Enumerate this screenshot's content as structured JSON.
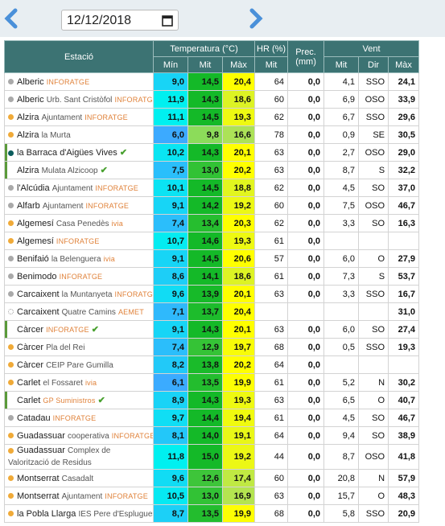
{
  "date": "12/12/2018",
  "header": {
    "station": "Estació",
    "temperature": "Temperatura (°C)",
    "humidity": "HR (%)",
    "precipitation": "Prec. (mm)",
    "wind": "Vent",
    "sub": [
      "Mín",
      "Mit",
      "Màx",
      "Mit",
      "Mit",
      "Dir",
      "Màx"
    ]
  },
  "rows": [
    {
      "name": "Alberic",
      "source": "INFORATGE",
      "dot": "grey",
      "cells": [
        "9,0",
        "14,5",
        "20,4",
        "64",
        "0,0",
        "4,1",
        "SSO",
        "24,1"
      ]
    },
    {
      "name": "Alberic",
      "detail": "Urb. Sant Cristòfol",
      "source": "INFORATGE",
      "dot": "grey",
      "cells": [
        "11,9",
        "14,3",
        "18,6",
        "60",
        "0,0",
        "6,9",
        "OSO",
        "33,9"
      ]
    },
    {
      "name": "Alzira",
      "detail": "Ajuntament",
      "source": "INFORATGE",
      "dot": "orange",
      "cells": [
        "11,1",
        "14,5",
        "19,3",
        "62",
        "0,0",
        "6,7",
        "SSO",
        "29,6"
      ]
    },
    {
      "name": "Alzira",
      "detail": "la Murta",
      "dot": "orange",
      "cells": [
        "6,0",
        "9,8",
        "16,6",
        "78",
        "0,0",
        "0,9",
        "SE",
        "30,5"
      ]
    },
    {
      "name": "la Barraca d'Aigües Vives",
      "dot": "teal",
      "check": true,
      "cells": [
        "10,2",
        "14,3",
        "20,1",
        "63",
        "0,0",
        "2,7",
        "OSO",
        "29,0"
      ]
    },
    {
      "name": "Alzira",
      "detail": "Mulata Alzicoop",
      "check": true,
      "cells": [
        "7,5",
        "13,0",
        "20,2",
        "63",
        "0,0",
        "8,7",
        "S",
        "32,2"
      ]
    },
    {
      "name": "l'Alcúdia",
      "detail": "Ajuntament",
      "source": "INFORATGE",
      "dot": "grey",
      "cells": [
        "10,1",
        "14,5",
        "18,8",
        "62",
        "0,0",
        "4,5",
        "SO",
        "37,0"
      ]
    },
    {
      "name": "Alfarb",
      "detail": "Ajuntament",
      "source": "INFORATGE",
      "dot": "grey",
      "cells": [
        "9,1",
        "14,2",
        "19,2",
        "60",
        "0,0",
        "7,5",
        "OSO",
        "46,7"
      ]
    },
    {
      "name": "Algemesí",
      "detail": "Casa Penedès",
      "source": "ivia",
      "dot": "orange",
      "cells": [
        "7,4",
        "13,4",
        "20,3",
        "62",
        "0,0",
        "3,3",
        "SO",
        "16,3"
      ]
    },
    {
      "name": "Algemesí",
      "source": "INFORATGE",
      "dot": "orange",
      "cells": [
        "10,7",
        "14,6",
        "19,3",
        "61",
        "0,0",
        null,
        null,
        null
      ]
    },
    {
      "name": "Benifaió",
      "detail": "la Belenguera",
      "source": "ivia",
      "dot": "grey",
      "cells": [
        "9,1",
        "14,5",
        "20,6",
        "57",
        "0,0",
        "6,0",
        "O",
        "27,9"
      ]
    },
    {
      "name": "Benimodo",
      "source": "INFORATGE",
      "dot": "grey",
      "cells": [
        "8,6",
        "14,1",
        "18,6",
        "61",
        "0,0",
        "7,3",
        "S",
        "53,7"
      ]
    },
    {
      "name": "Carcaixent",
      "detail": "la Muntanyeta",
      "source": "INFORATGE",
      "dot": "grey",
      "cells": [
        "9,6",
        "13,9",
        "20,1",
        "63",
        "0,0",
        "3,3",
        "SSO",
        "16,7"
      ]
    },
    {
      "name": "Carcaixent",
      "detail": "Quatre Camins",
      "source": "AEMET",
      "dot": "open",
      "cells": [
        "7,1",
        "13,7",
        "20,4",
        null,
        null,
        null,
        null,
        "31,0"
      ]
    },
    {
      "name": "Càrcer",
      "source": "INFORATGE",
      "check": true,
      "cells": [
        "9,1",
        "14,3",
        "20,1",
        "63",
        "0,0",
        "6,0",
        "SO",
        "27,4"
      ]
    },
    {
      "name": "Càrcer",
      "detail": "Pla del Rei",
      "dot": "orange",
      "cells": [
        "7,4",
        "12,9",
        "19,7",
        "68",
        "0,0",
        "0,5",
        "SSO",
        "19,3"
      ]
    },
    {
      "name": "Càrcer",
      "detail": "CEIP Pare Gumilla",
      "dot": "orange",
      "cells": [
        "8,2",
        "13,8",
        "20,2",
        "64",
        "0,0",
        null,
        null,
        null
      ]
    },
    {
      "name": "Carlet",
      "detail": "el Fossaret",
      "source": "ivia",
      "dot": "orange",
      "cells": [
        "6,1",
        "13,5",
        "19,9",
        "61",
        "0,0",
        "5,2",
        "N",
        "30,2"
      ]
    },
    {
      "name": "Carlet",
      "source": "GP Suministros",
      "check": true,
      "cells": [
        "8,9",
        "14,3",
        "19,3",
        "63",
        "0,0",
        "6,5",
        "O",
        "40,7"
      ]
    },
    {
      "name": "Catadau",
      "source": "INFORATGE",
      "dot": "grey",
      "cells": [
        "9,7",
        "14,4",
        "19,4",
        "61",
        "0,0",
        "4,5",
        "SO",
        "46,7"
      ]
    },
    {
      "name": "Guadassuar",
      "detail": "cooperativa",
      "source": "INFORATGE",
      "dot": "orange",
      "cells": [
        "8,1",
        "14,0",
        "19,1",
        "64",
        "0,0",
        "9,4",
        "SO",
        "38,9"
      ]
    },
    {
      "name": "Guadassuar",
      "detail": "Complex de Valorització de Residus",
      "dot": "orange",
      "cells": [
        "11,8",
        "15,0",
        "19,2",
        "44",
        "0,0",
        "8,7",
        "OSO",
        "41,8"
      ]
    },
    {
      "name": "Montserrat",
      "detail": "Casadalt",
      "dot": "orange",
      "cells": [
        "9,6",
        "12,6",
        "17,4",
        "60",
        "0,0",
        "20,8",
        "N",
        "57,9"
      ]
    },
    {
      "name": "Montserrat",
      "detail": "Ajuntament",
      "source": "INFORATGE",
      "dot": "orange",
      "cells": [
        "10,5",
        "13,0",
        "16,9",
        "63",
        "0,0",
        "15,7",
        "O",
        "48,3"
      ]
    },
    {
      "name": "la Pobla Llarga",
      "detail": "IES Pere d'Esplugues",
      "dot": "orange",
      "cells": [
        "8,7",
        "13,5",
        "19,9",
        "68",
        "0,0",
        "5,8",
        "SSO",
        "20,9"
      ]
    }
  ]
}
